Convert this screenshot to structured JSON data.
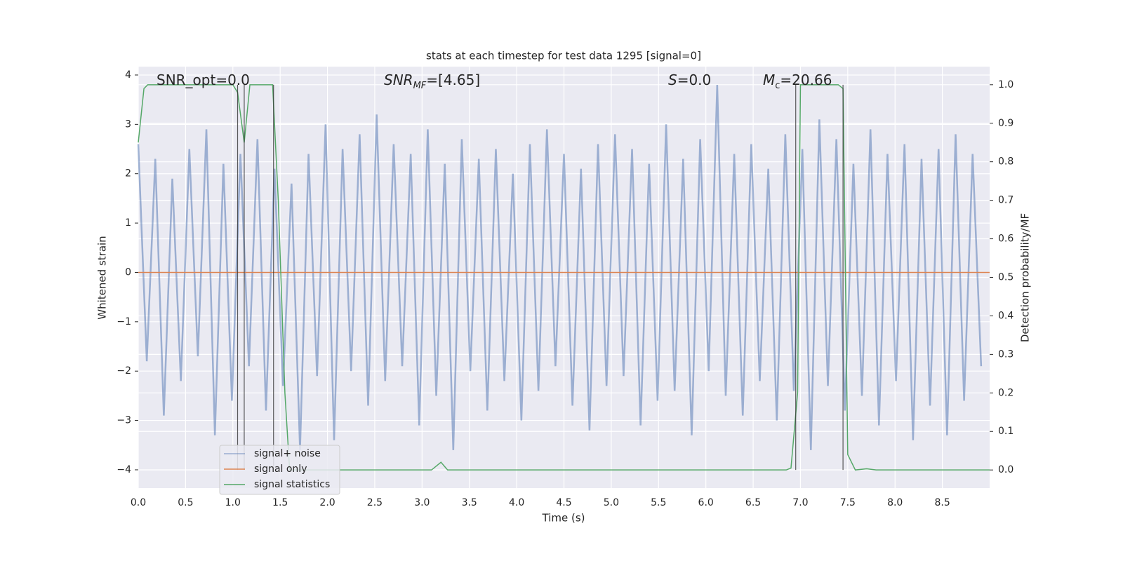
{
  "chart_data": {
    "type": "line",
    "title": "stats at each timestep for test data 1295 [signal=0]",
    "xlabel": "Time (s)",
    "ylabel": "Whitened strain",
    "y2label": "Detection probability/MF",
    "xlim": [
      0,
      9.0
    ],
    "ylim": [
      -4.37,
      4.17
    ],
    "y2lim": [
      -0.047,
      1.047
    ],
    "xticks": [
      {
        "value": 0,
        "label": "0.0"
      },
      0.5,
      {
        "value": 1,
        "label": "1.0"
      },
      1.5,
      {
        "value": 2,
        "label": "2.0"
      },
      2.5,
      {
        "value": 3,
        "label": "3.0"
      },
      3.5,
      {
        "value": 4,
        "label": "4.0"
      },
      4.5,
      {
        "value": 5,
        "label": "5.0"
      },
      5.5,
      {
        "value": 6,
        "label": "6.0"
      },
      6.5,
      {
        "value": 7,
        "label": "7.0"
      },
      7.5,
      {
        "value": 8,
        "label": "8.0"
      },
      8.5
    ],
    "yticks": [
      {
        "value": -4,
        "label": "−4"
      },
      {
        "value": -3,
        "label": "−3"
      },
      {
        "value": -2,
        "label": "−2"
      },
      {
        "value": -1,
        "label": "−1"
      },
      0,
      1,
      2,
      3,
      4
    ],
    "y2ticks": [
      {
        "value": 0,
        "label": "0.0"
      },
      0.1,
      0.2,
      0.3,
      0.4,
      0.5,
      0.6,
      0.7,
      0.8,
      0.9,
      {
        "value": 1,
        "label": "1.0"
      }
    ],
    "grid": true,
    "legend": "lower left",
    "series": [
      {
        "name": "signal+ noise",
        "color": "#4c72b0",
        "x": [
          0,
          0.09,
          0.18,
          0.27,
          0.36,
          0.45,
          0.54,
          0.63,
          0.72,
          0.81,
          0.9,
          0.99,
          1.08,
          1.17,
          1.26,
          1.35,
          1.44,
          1.53,
          1.62,
          1.71,
          1.8,
          1.89,
          1.98,
          2.07,
          2.16,
          2.25,
          2.34,
          2.43,
          2.52,
          2.61,
          2.7,
          2.79,
          2.88,
          2.97,
          3.06,
          3.15,
          3.24,
          3.33,
          3.42,
          3.51,
          3.6,
          3.69,
          3.78,
          3.87,
          3.96,
          4.05,
          4.14,
          4.23,
          4.32,
          4.41,
          4.5,
          4.59,
          4.68,
          4.77,
          4.86,
          4.95,
          5.04,
          5.13,
          5.22,
          5.31,
          5.4,
          5.49,
          5.58,
          5.67,
          5.76,
          5.85,
          5.94,
          6.03,
          6.12,
          6.21,
          6.3,
          6.39,
          6.48,
          6.57,
          6.66,
          6.75,
          6.84,
          6.93,
          7.02,
          7.11,
          7.2,
          7.29,
          7.38,
          7.47,
          7.56,
          7.65,
          7.74,
          7.83,
          7.92,
          8.01,
          8.1,
          8.19,
          8.28,
          8.37,
          8.46,
          8.55,
          8.64,
          8.73,
          8.82,
          8.91
        ],
        "values": [
          2.6,
          -1.8,
          2.3,
          -2.9,
          1.9,
          -2.2,
          2.5,
          -1.7,
          2.9,
          -3.3,
          2.2,
          -2.6,
          2.4,
          -1.9,
          2.7,
          -2.8,
          2.1,
          -2.3,
          1.8,
          -3.6,
          2.4,
          -2.1,
          3.0,
          -3.4,
          2.5,
          -2.0,
          2.8,
          -2.7,
          3.2,
          -2.2,
          2.6,
          -1.9,
          2.4,
          -3.1,
          2.9,
          -2.5,
          2.2,
          -3.6,
          2.7,
          -2.0,
          2.3,
          -2.8,
          2.5,
          -2.2,
          2.0,
          -3.0,
          2.6,
          -2.4,
          2.9,
          -1.9,
          2.4,
          -2.7,
          2.1,
          -3.2,
          2.6,
          -2.3,
          2.8,
          -2.1,
          2.5,
          -3.1,
          2.2,
          -2.6,
          3.0,
          -2.4,
          2.3,
          -3.3,
          2.7,
          -2.0,
          3.8,
          -2.5,
          2.4,
          -2.9,
          2.6,
          -2.2,
          2.1,
          -3.0,
          2.8,
          -2.4,
          2.5,
          -3.6,
          3.1,
          -2.3,
          2.7,
          -2.8,
          2.2,
          -2.5,
          2.9,
          -3.1,
          2.4,
          -2.2,
          2.6,
          -3.4,
          2.3,
          -2.7,
          2.5,
          -3.3,
          2.8,
          -2.6,
          2.4,
          -1.9
        ]
      },
      {
        "name": "signal only",
        "color": "#dd8452",
        "x": [
          0,
          9.0
        ],
        "values": [
          0,
          0
        ]
      },
      {
        "name": "signal statistics",
        "color": "#55a868",
        "axis": "y2",
        "x": [
          0,
          0.06,
          0.1,
          1.0,
          1.05,
          1.12,
          1.18,
          1.3,
          1.42,
          1.48,
          1.55,
          1.6,
          3.1,
          3.2,
          3.27,
          6.85,
          6.9,
          6.97,
          7.0,
          7.4,
          7.45,
          7.5,
          7.58,
          7.7,
          7.8,
          9.0
        ],
        "values": [
          0.85,
          0.99,
          1.0,
          1.0,
          0.98,
          0.85,
          1.0,
          1.0,
          1.0,
          0.7,
          0.2,
          0.0,
          0.0,
          0.02,
          0.0,
          0.0,
          0.005,
          0.2,
          1.0,
          1.0,
          0.99,
          0.04,
          0.0,
          0.003,
          0.0,
          0.0
        ]
      }
    ],
    "vlines": [
      1.05,
      1.12,
      1.43,
      6.95,
      7.45
    ],
    "annotations": [
      {
        "text": "SNR_opt=0.0"
      },
      {
        "base": "SNR",
        "sub": "MF",
        "rest": "=[4.65]"
      },
      {
        "base": "S",
        "rest": "=0.0"
      },
      {
        "base": "M",
        "sub": "c",
        "rest": "=20.66"
      }
    ]
  }
}
